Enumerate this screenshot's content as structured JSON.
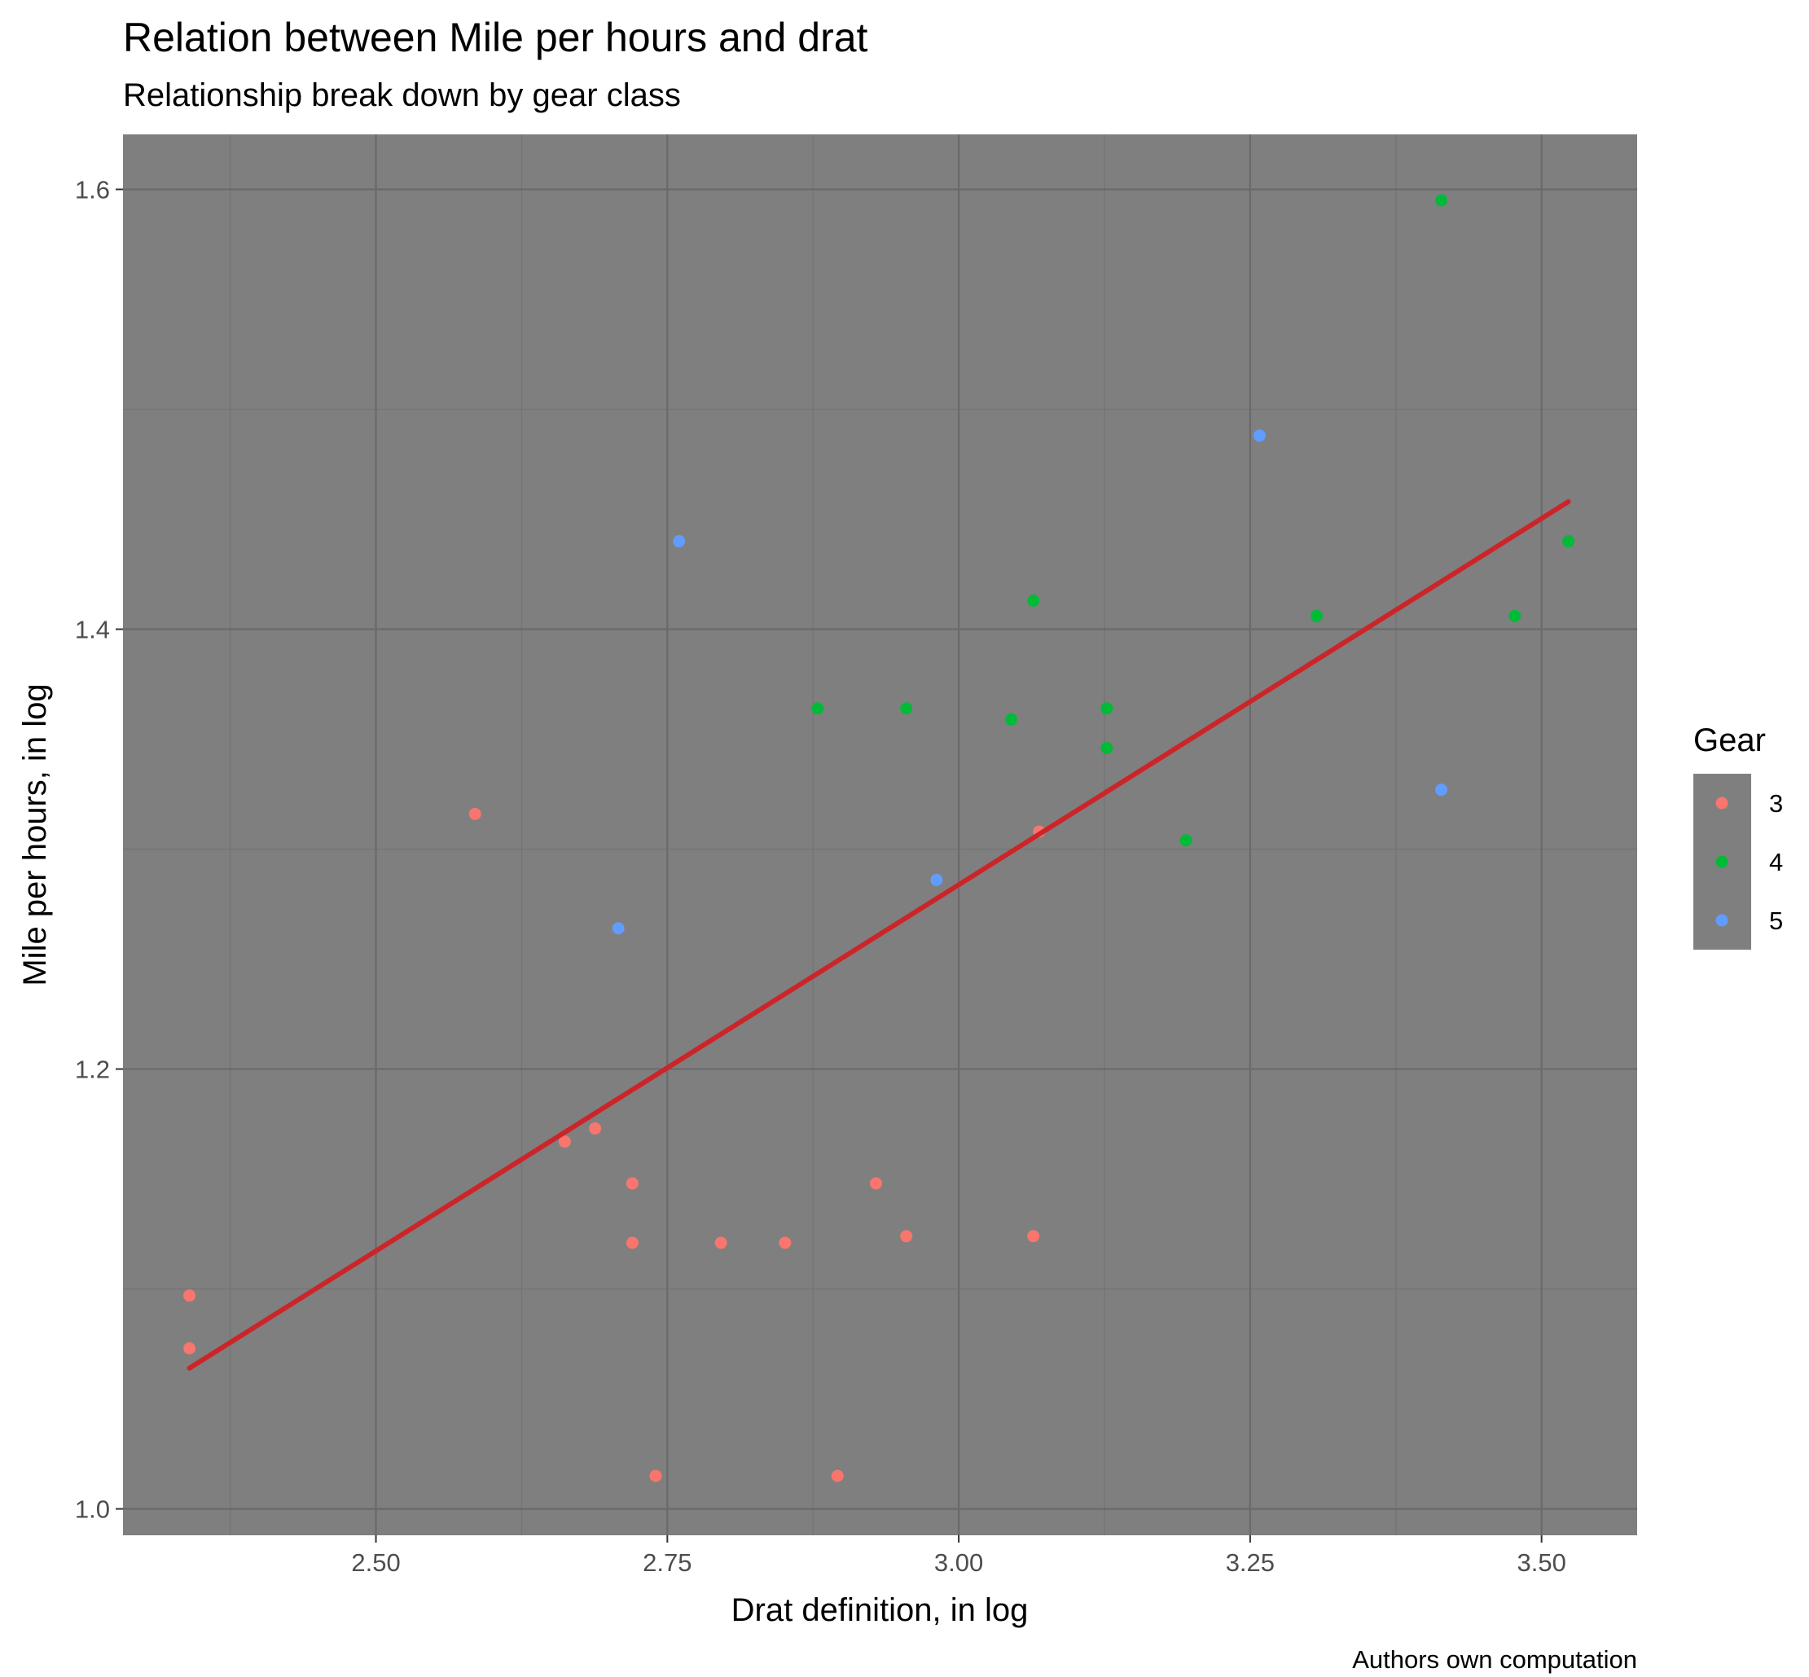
{
  "chart_data": {
    "type": "scatter",
    "title": "Relation between Mile per hours and drat",
    "subtitle": "Relationship break down by gear class",
    "xlabel": "Drat definition, in log",
    "ylabel": "Mile per hours, in log",
    "caption": "Authors own computation",
    "xlim": [
      2.283,
      3.582
    ],
    "ylim": [
      0.988,
      1.625
    ],
    "x_ticks": [
      2.5,
      2.75,
      3.0,
      3.25,
      3.5
    ],
    "x_tick_labels": [
      "2.50",
      "2.75",
      "3.00",
      "3.25",
      "3.50"
    ],
    "y_ticks": [
      1.0,
      1.2,
      1.4,
      1.6
    ],
    "y_tick_labels": [
      "1.0",
      "1.2",
      "1.4",
      "1.6"
    ],
    "grid": true,
    "legend": {
      "title": "Gear",
      "placement": "right",
      "entries": [
        {
          "label": "3",
          "color": "#F8766D"
        },
        {
          "label": "4",
          "color": "#00BA38"
        },
        {
          "label": "5",
          "color": "#619CFF"
        }
      ]
    },
    "series": [
      {
        "name": "3",
        "color": "#F8766D",
        "points": [
          {
            "x": 2.34,
            "y": 1.097
          },
          {
            "x": 2.34,
            "y": 1.073
          },
          {
            "x": 2.585,
            "y": 1.316
          },
          {
            "x": 2.662,
            "y": 1.167
          },
          {
            "x": 2.688,
            "y": 1.173
          },
          {
            "x": 2.72,
            "y": 1.148
          },
          {
            "x": 2.72,
            "y": 1.121
          },
          {
            "x": 2.74,
            "y": 1.015
          },
          {
            "x": 2.796,
            "y": 1.121
          },
          {
            "x": 2.851,
            "y": 1.121
          },
          {
            "x": 2.896,
            "y": 1.015
          },
          {
            "x": 2.929,
            "y": 1.148
          },
          {
            "x": 2.955,
            "y": 1.124
          },
          {
            "x": 3.064,
            "y": 1.124
          },
          {
            "x": 3.069,
            "y": 1.308
          }
        ]
      },
      {
        "name": "4",
        "color": "#00BA38",
        "points": [
          {
            "x": 2.879,
            "y": 1.364
          },
          {
            "x": 2.955,
            "y": 1.364
          },
          {
            "x": 3.045,
            "y": 1.359
          },
          {
            "x": 3.064,
            "y": 1.413
          },
          {
            "x": 3.127,
            "y": 1.364
          },
          {
            "x": 3.127,
            "y": 1.346
          },
          {
            "x": 3.195,
            "y": 1.304
          },
          {
            "x": 3.307,
            "y": 1.406
          },
          {
            "x": 3.414,
            "y": 1.595
          },
          {
            "x": 3.477,
            "y": 1.406
          },
          {
            "x": 3.523,
            "y": 1.44
          }
        ]
      },
      {
        "name": "5",
        "color": "#619CFF",
        "points": [
          {
            "x": 2.708,
            "y": 1.264
          },
          {
            "x": 2.76,
            "y": 1.44
          },
          {
            "x": 2.981,
            "y": 1.286
          },
          {
            "x": 3.258,
            "y": 1.488
          },
          {
            "x": 3.414,
            "y": 1.327
          }
        ]
      }
    ],
    "trend_line": {
      "color": "#CC2529",
      "x": [
        2.34,
        3.523
      ],
      "y": [
        1.064,
        1.458
      ]
    }
  }
}
